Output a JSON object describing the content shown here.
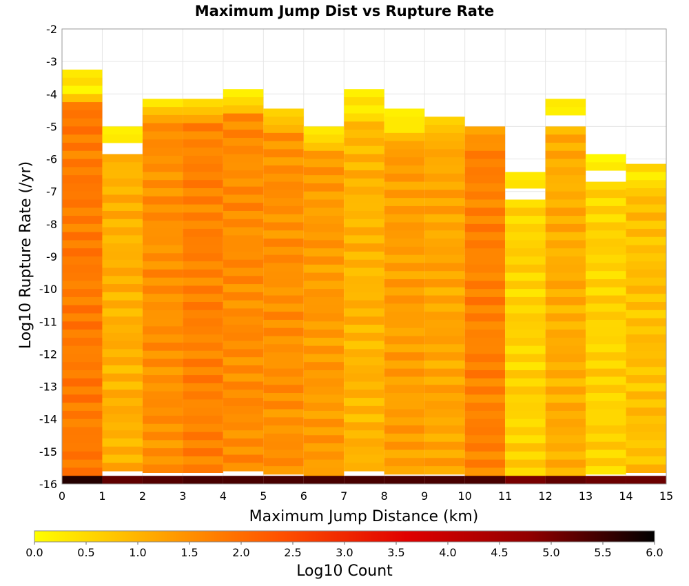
{
  "chart_data": {
    "type": "heatmap",
    "title": "Maximum Jump Dist vs Rupture Rate",
    "xlabel": "Maximum Jump Distance (km)",
    "ylabel": "Log10 Rupture Rate (/yr)",
    "xlim": [
      0,
      15
    ],
    "ylim": [
      -16,
      -2
    ],
    "x_ticks": [
      "0",
      "1",
      "2",
      "3",
      "4",
      "5",
      "6",
      "7",
      "8",
      "9",
      "10",
      "11",
      "12",
      "13",
      "14",
      "15"
    ],
    "y_ticks": [
      "-2",
      "-3",
      "-4",
      "-5",
      "-6",
      "-7",
      "-8",
      "-9",
      "-10",
      "-11",
      "-12",
      "-13",
      "-14",
      "-15",
      "-16"
    ],
    "x_bin_width": 1,
    "y_bin_width": 0.25,
    "colorbar": {
      "label": "Log10 Count",
      "min": 0,
      "max": 6,
      "ticks": [
        "0.0",
        "0.5",
        "1.0",
        "1.5",
        "2.0",
        "2.5",
        "3.0",
        "3.5",
        "4.0",
        "4.5",
        "5.0",
        "5.5",
        "6.0"
      ],
      "colors": [
        "#ffff00",
        "#ffa500",
        "#ff5000",
        "#e00000",
        "#900000",
        "#000000"
      ]
    },
    "columns": [
      {
        "x": 0,
        "y_top": -3.25,
        "top_values": [
          0.3,
          0.5,
          0.1,
          0.8
        ],
        "mean": 1.8,
        "bottom_row": 5.7
      },
      {
        "x": 1,
        "y_top": -5.0,
        "top_values": [
          0.2,
          0.3,
          "gap"
        ],
        "y_resume": -5.85,
        "mean": 1.05,
        "bottom_row": 5.2
      },
      {
        "x": 2,
        "y_top": -4.15,
        "top_values": [
          0.3,
          0.8,
          1.2
        ],
        "mean": 1.5,
        "bottom_row": 5.3
      },
      {
        "x": 3,
        "y_top": -4.15,
        "top_values": [
          0.5,
          0.8,
          1.2
        ],
        "mean": 1.7,
        "bottom_row": 5.4
      },
      {
        "x": 4,
        "y_top": -3.85,
        "top_values": [
          0.2,
          0.5,
          0.8
        ],
        "mean": 1.55,
        "bottom_row": 5.4
      },
      {
        "x": 5,
        "y_top": -4.45,
        "top_values": [
          0.6,
          0.8,
          1.0
        ],
        "mean": 1.5,
        "bottom_row": 5.4
      },
      {
        "x": 6,
        "y_top": -5.0,
        "top_values": [
          0.3,
          0.5,
          0.8
        ],
        "mean": 1.35,
        "bottom_row": 5.4
      },
      {
        "x": 7,
        "y_top": -3.85,
        "top_values": [
          0.2,
          0.5,
          0.2,
          0.5
        ],
        "mean": 1.0,
        "bottom_row": 5.4
      },
      {
        "x": 8,
        "y_top": -4.45,
        "top_values": [
          0.2,
          0.3,
          0.3,
          0.9
        ],
        "mean": 1.3,
        "bottom_row": 5.4
      },
      {
        "x": 9,
        "y_top": -4.7,
        "top_values": [
          0.6,
          0.8,
          1.0
        ],
        "mean": 1.2,
        "bottom_row": 5.4
      },
      {
        "x": 10,
        "y_top": -5.0,
        "top_values": [
          1.2,
          1.5
        ],
        "mean": 1.7,
        "bottom_row": 5.4
      },
      {
        "x": 11,
        "y_top": -6.4,
        "top_values": [
          0.3,
          0.4,
          "gap"
        ],
        "y_resume": -7.25,
        "mean": 0.6,
        "bottom_row": 5.0
      },
      {
        "x": 12,
        "y_top": -4.15,
        "top_values": [
          0.3,
          0.2,
          "gap"
        ],
        "y_resume": -5.0,
        "mean": 1.1,
        "bottom_row": 5.2
      },
      {
        "x": 13,
        "y_top": -5.85,
        "top_values": [
          0.1,
          0.3,
          "gap"
        ],
        "y_resume": -6.7,
        "mean": 0.6,
        "bottom_row": 5.1
      },
      {
        "x": 14,
        "y_top": -6.15,
        "top_values": [
          0.6,
          0.2,
          0.5
        ],
        "mean": 0.85,
        "bottom_row": 5.1
      }
    ]
  }
}
